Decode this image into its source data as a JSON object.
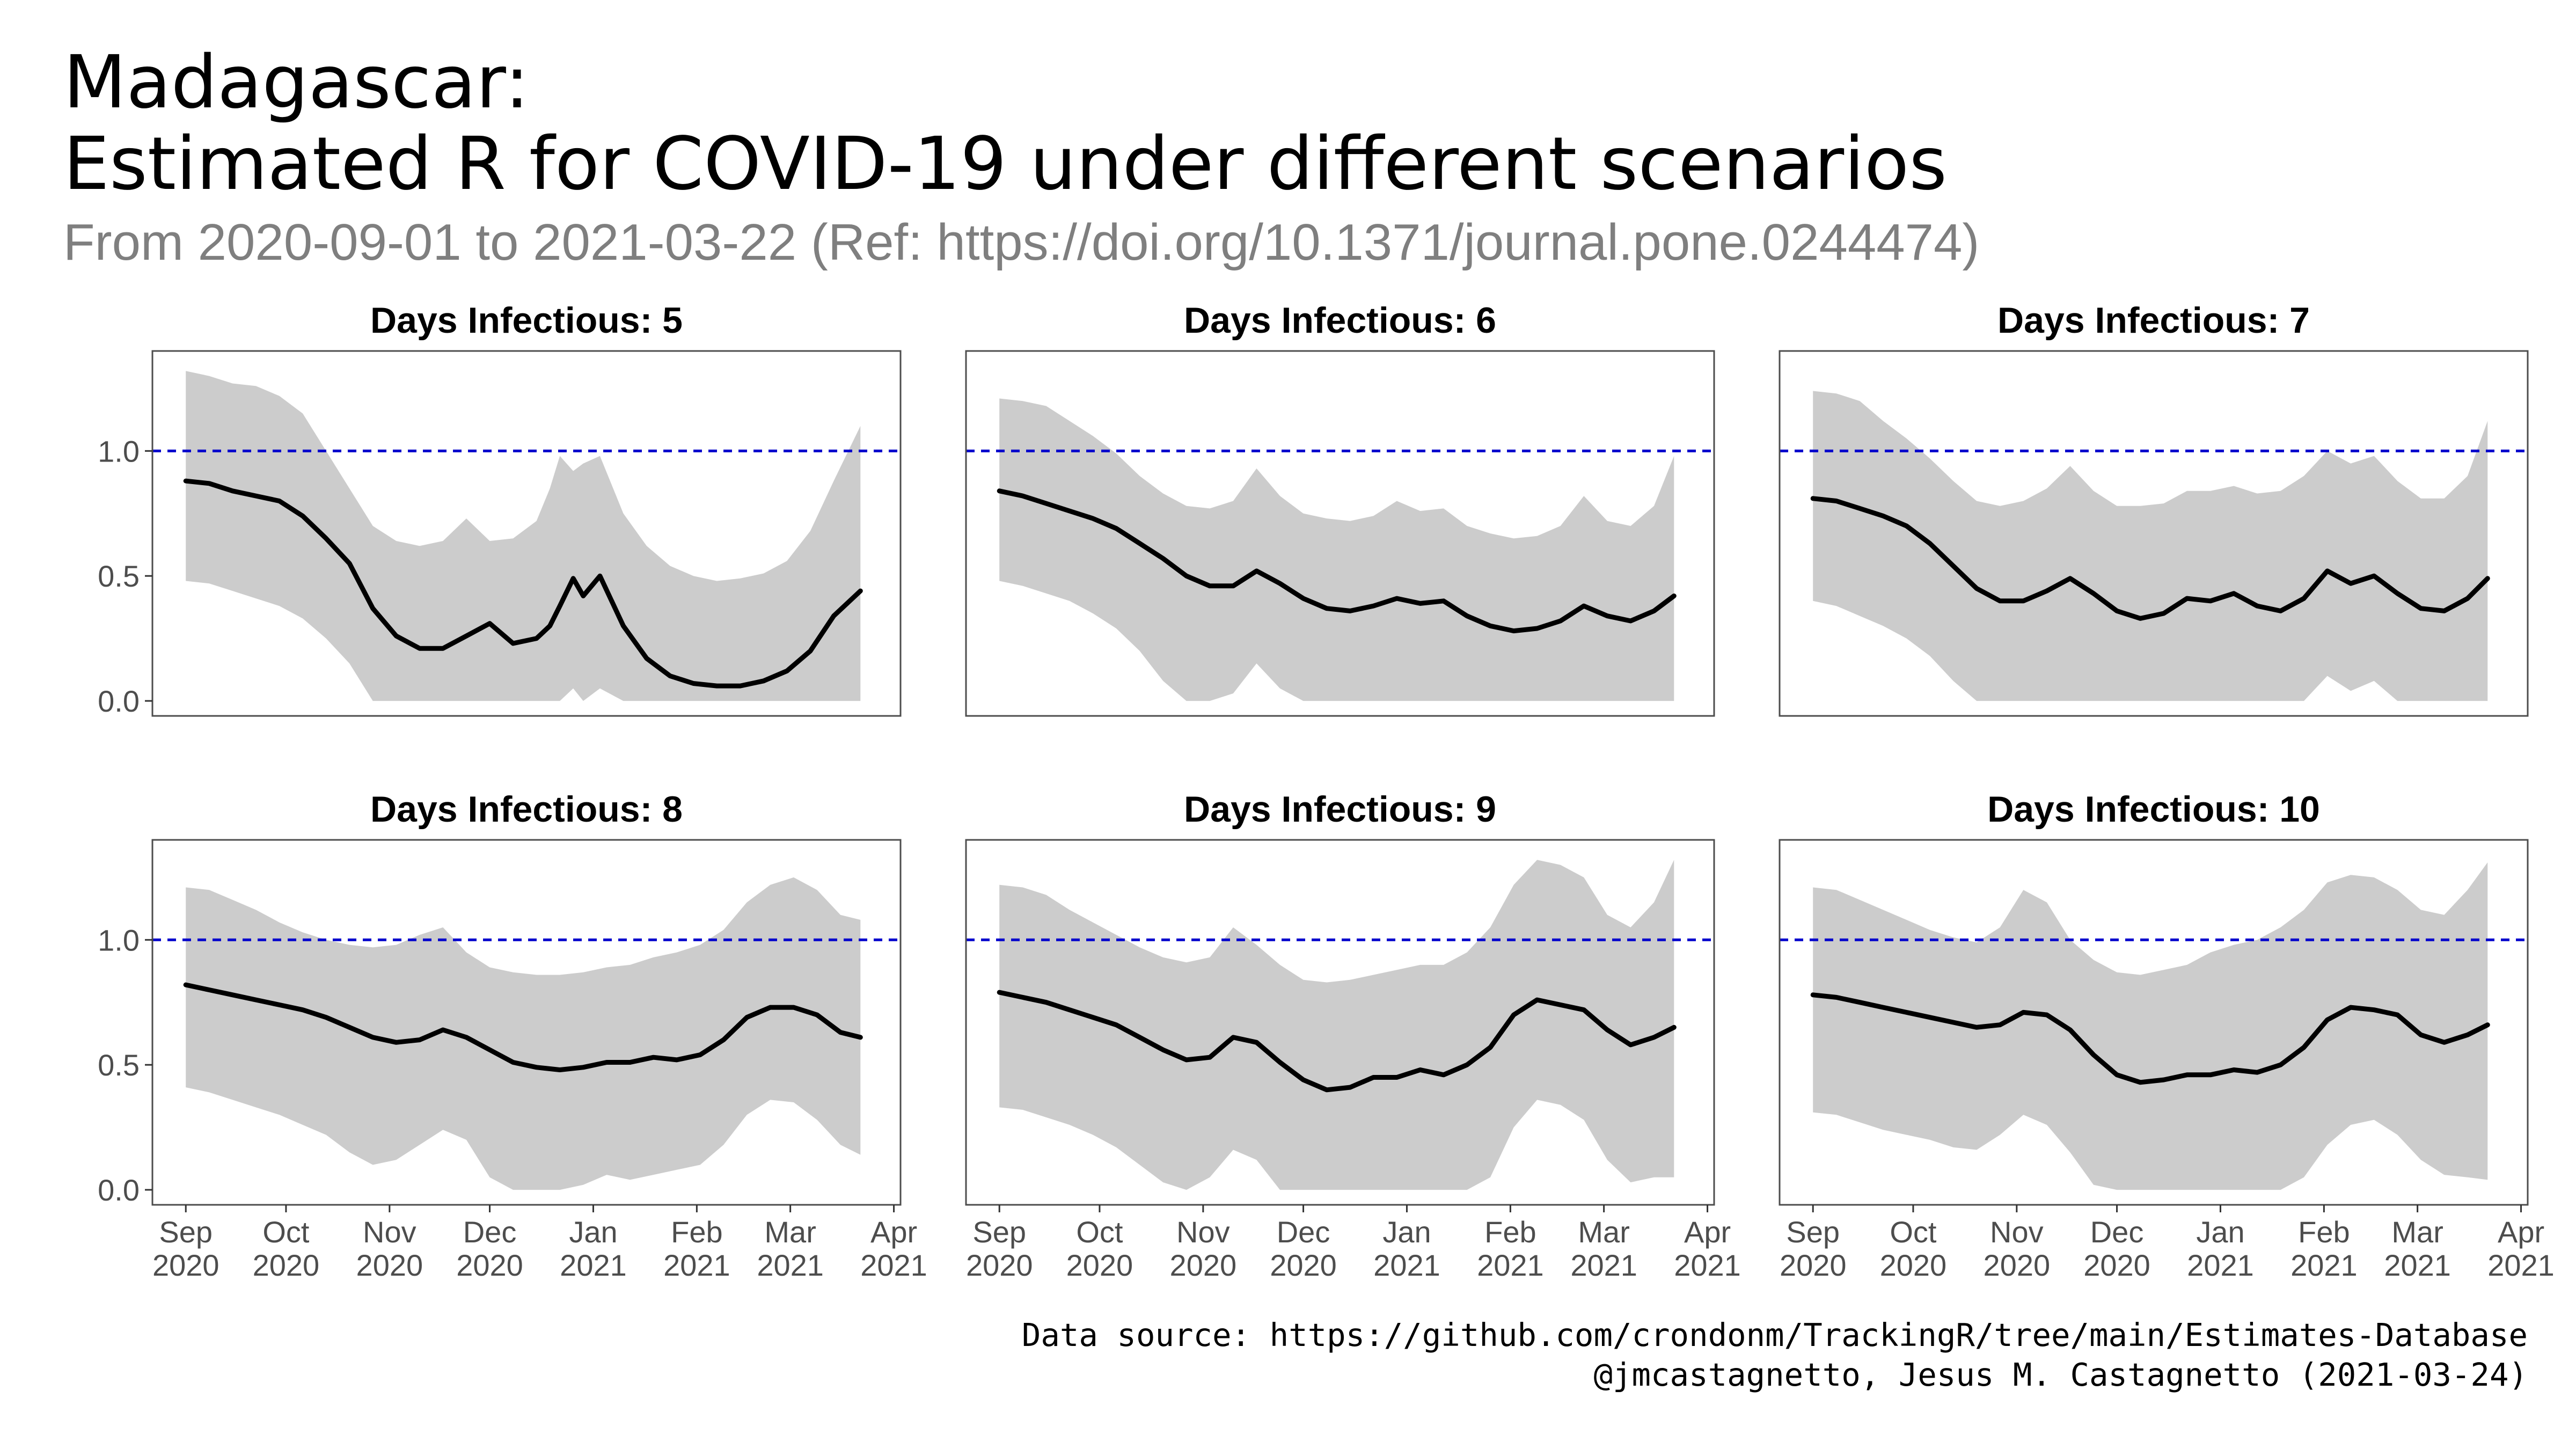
{
  "title_line1": "Madagascar:",
  "title_line2": "Estimated R for COVID-19 under different scenarios",
  "subtitle": "From 2020-09-01 to 2021-03-22 (Ref: https://doi.org/10.1371/journal.pone.0244474)",
  "caption_line1": "Data source: https://github.com/crondonm/TrackingR/tree/main/Estimates-Database",
  "caption_line2": "@jmcastagnetto, Jesus M. Castagnetto (2021-03-24)",
  "colors": {
    "ribbon": "#cccccc",
    "line": "#000000",
    "reference": "#0000cc",
    "panel_border": "#4d4d4d"
  },
  "chart_data": {
    "type": "area",
    "facet_by": "Days Infectious",
    "reference_line": {
      "y": 1.0,
      "style": "dashed"
    },
    "ylim": [
      -0.06,
      1.4
    ],
    "y_ticks": [
      0.0,
      0.5,
      1.0
    ],
    "y_tick_labels": [
      "0.0",
      "0.5",
      "1.0"
    ],
    "x_range": [
      "2020-08-22",
      "2021-04-03"
    ],
    "x_ticks": [
      "2020-09-01",
      "2020-10-01",
      "2020-11-01",
      "2020-12-01",
      "2021-01-01",
      "2021-02-01",
      "2021-03-01",
      "2021-04-01"
    ],
    "x_tick_labels": [
      [
        "Sep",
        "2020"
      ],
      [
        "Oct",
        "2020"
      ],
      [
        "Nov",
        "2020"
      ],
      [
        "Dec",
        "2020"
      ],
      [
        "Jan",
        "2021"
      ],
      [
        "Feb",
        "2021"
      ],
      [
        "Mar",
        "2021"
      ],
      [
        "Apr",
        "2021"
      ]
    ],
    "legend": "none",
    "grid": false,
    "panels": [
      {
        "title": "Days Infectious: 5",
        "dates": [
          "2020-09-01",
          "2020-09-08",
          "2020-09-15",
          "2020-09-22",
          "2020-09-29",
          "2020-10-06",
          "2020-10-13",
          "2020-10-20",
          "2020-10-27",
          "2020-11-03",
          "2020-11-10",
          "2020-11-17",
          "2020-11-24",
          "2020-12-01",
          "2020-12-08",
          "2020-12-15",
          "2020-12-19",
          "2020-12-22",
          "2020-12-26",
          "2020-12-29",
          "2021-01-03",
          "2021-01-10",
          "2021-01-17",
          "2021-01-24",
          "2021-01-31",
          "2021-02-07",
          "2021-02-14",
          "2021-02-21",
          "2021-02-28",
          "2021-03-07",
          "2021-03-14",
          "2021-03-22"
        ],
        "mean": [
          0.88,
          0.87,
          0.84,
          0.82,
          0.8,
          0.74,
          0.65,
          0.55,
          0.37,
          0.26,
          0.21,
          0.21,
          0.26,
          0.31,
          0.23,
          0.25,
          0.3,
          0.38,
          0.49,
          0.42,
          0.5,
          0.3,
          0.17,
          0.1,
          0.07,
          0.06,
          0.06,
          0.08,
          0.12,
          0.2,
          0.34,
          0.44
        ],
        "upper": [
          1.32,
          1.3,
          1.27,
          1.26,
          1.22,
          1.15,
          1.0,
          0.85,
          0.7,
          0.64,
          0.62,
          0.64,
          0.73,
          0.64,
          0.65,
          0.72,
          0.85,
          0.98,
          0.92,
          0.95,
          0.98,
          0.75,
          0.62,
          0.54,
          0.5,
          0.48,
          0.49,
          0.51,
          0.56,
          0.68,
          0.88,
          1.1
        ],
        "lower": [
          0.48,
          0.47,
          0.44,
          0.41,
          0.38,
          0.33,
          0.25,
          0.15,
          0.0,
          0.0,
          0.0,
          0.0,
          0.0,
          0.0,
          0.0,
          0.0,
          0.0,
          0.0,
          0.05,
          0.0,
          0.05,
          0.0,
          0.0,
          0.0,
          0.0,
          0.0,
          0.0,
          0.0,
          0.0,
          0.0,
          0.0,
          0.0
        ]
      },
      {
        "title": "Days Infectious: 6",
        "dates": [
          "2020-09-01",
          "2020-09-08",
          "2020-09-15",
          "2020-09-22",
          "2020-09-29",
          "2020-10-06",
          "2020-10-13",
          "2020-10-20",
          "2020-10-27",
          "2020-11-03",
          "2020-11-10",
          "2020-11-17",
          "2020-11-24",
          "2020-12-01",
          "2020-12-08",
          "2020-12-15",
          "2020-12-22",
          "2020-12-29",
          "2021-01-05",
          "2021-01-12",
          "2021-01-19",
          "2021-01-26",
          "2021-02-02",
          "2021-02-09",
          "2021-02-16",
          "2021-02-23",
          "2021-03-02",
          "2021-03-09",
          "2021-03-16",
          "2021-03-22"
        ],
        "mean": [
          0.84,
          0.82,
          0.79,
          0.76,
          0.73,
          0.69,
          0.63,
          0.57,
          0.5,
          0.46,
          0.46,
          0.52,
          0.47,
          0.41,
          0.37,
          0.36,
          0.38,
          0.41,
          0.39,
          0.4,
          0.34,
          0.3,
          0.28,
          0.29,
          0.32,
          0.38,
          0.34,
          0.32,
          0.36,
          0.42
        ],
        "upper": [
          1.21,
          1.2,
          1.18,
          1.12,
          1.06,
          0.99,
          0.9,
          0.83,
          0.78,
          0.77,
          0.8,
          0.93,
          0.82,
          0.75,
          0.73,
          0.72,
          0.74,
          0.8,
          0.76,
          0.77,
          0.7,
          0.67,
          0.65,
          0.66,
          0.7,
          0.82,
          0.72,
          0.7,
          0.78,
          0.98
        ],
        "lower": [
          0.48,
          0.46,
          0.43,
          0.4,
          0.35,
          0.29,
          0.2,
          0.08,
          0.0,
          0.0,
          0.03,
          0.15,
          0.05,
          0.0,
          0.0,
          0.0,
          0.0,
          0.0,
          0.0,
          0.0,
          0.0,
          0.0,
          0.0,
          0.0,
          0.0,
          0.0,
          0.0,
          0.0,
          0.0,
          0.0
        ]
      },
      {
        "title": "Days Infectious: 7",
        "dates": [
          "2020-09-01",
          "2020-09-08",
          "2020-09-15",
          "2020-09-22",
          "2020-09-29",
          "2020-10-06",
          "2020-10-13",
          "2020-10-20",
          "2020-10-27",
          "2020-11-03",
          "2020-11-10",
          "2020-11-17",
          "2020-11-24",
          "2020-12-01",
          "2020-12-08",
          "2020-12-15",
          "2020-12-22",
          "2020-12-29",
          "2021-01-05",
          "2021-01-12",
          "2021-01-19",
          "2021-01-26",
          "2021-02-02",
          "2021-02-09",
          "2021-02-16",
          "2021-02-23",
          "2021-03-02",
          "2021-03-09",
          "2021-03-16",
          "2021-03-22"
        ],
        "mean": [
          0.81,
          0.8,
          0.77,
          0.74,
          0.7,
          0.63,
          0.54,
          0.45,
          0.4,
          0.4,
          0.44,
          0.49,
          0.43,
          0.36,
          0.33,
          0.35,
          0.41,
          0.4,
          0.43,
          0.38,
          0.36,
          0.41,
          0.52,
          0.47,
          0.5,
          0.43,
          0.37,
          0.36,
          0.41,
          0.49
        ],
        "upper": [
          1.24,
          1.23,
          1.2,
          1.12,
          1.05,
          0.97,
          0.88,
          0.8,
          0.78,
          0.8,
          0.85,
          0.94,
          0.84,
          0.78,
          0.78,
          0.79,
          0.84,
          0.84,
          0.86,
          0.83,
          0.84,
          0.9,
          1.0,
          0.95,
          0.98,
          0.88,
          0.81,
          0.81,
          0.9,
          1.12
        ],
        "lower": [
          0.4,
          0.38,
          0.34,
          0.3,
          0.25,
          0.18,
          0.08,
          0.0,
          0.0,
          0.0,
          0.0,
          0.0,
          0.0,
          0.0,
          0.0,
          0.0,
          0.0,
          0.0,
          0.0,
          0.0,
          0.0,
          0.0,
          0.1,
          0.04,
          0.08,
          0.0,
          0.0,
          0.0,
          0.0,
          0.0
        ]
      },
      {
        "title": "Days Infectious: 8",
        "dates": [
          "2020-09-01",
          "2020-09-08",
          "2020-09-15",
          "2020-09-22",
          "2020-09-29",
          "2020-10-06",
          "2020-10-13",
          "2020-10-20",
          "2020-10-27",
          "2020-11-03",
          "2020-11-10",
          "2020-11-17",
          "2020-11-24",
          "2020-12-01",
          "2020-12-08",
          "2020-12-15",
          "2020-12-22",
          "2020-12-29",
          "2021-01-05",
          "2021-01-12",
          "2021-01-19",
          "2021-01-26",
          "2021-02-02",
          "2021-02-09",
          "2021-02-16",
          "2021-02-23",
          "2021-03-02",
          "2021-03-09",
          "2021-03-16",
          "2021-03-22"
        ],
        "mean": [
          0.82,
          0.8,
          0.78,
          0.76,
          0.74,
          0.72,
          0.69,
          0.65,
          0.61,
          0.59,
          0.6,
          0.64,
          0.61,
          0.56,
          0.51,
          0.49,
          0.48,
          0.49,
          0.51,
          0.51,
          0.53,
          0.52,
          0.54,
          0.6,
          0.69,
          0.73,
          0.73,
          0.7,
          0.63,
          0.61
        ],
        "upper": [
          1.21,
          1.2,
          1.16,
          1.12,
          1.07,
          1.03,
          1.0,
          0.98,
          0.97,
          0.98,
          1.02,
          1.05,
          0.95,
          0.89,
          0.87,
          0.86,
          0.86,
          0.87,
          0.89,
          0.9,
          0.93,
          0.95,
          0.98,
          1.04,
          1.15,
          1.22,
          1.25,
          1.2,
          1.1,
          1.08
        ],
        "lower": [
          0.41,
          0.39,
          0.36,
          0.33,
          0.3,
          0.26,
          0.22,
          0.15,
          0.1,
          0.12,
          0.18,
          0.24,
          0.2,
          0.05,
          0.0,
          0.0,
          0.0,
          0.02,
          0.06,
          0.04,
          0.06,
          0.08,
          0.1,
          0.18,
          0.3,
          0.36,
          0.35,
          0.28,
          0.18,
          0.14
        ]
      },
      {
        "title": "Days Infectious: 9",
        "dates": [
          "2020-09-01",
          "2020-09-08",
          "2020-09-15",
          "2020-09-22",
          "2020-09-29",
          "2020-10-06",
          "2020-10-13",
          "2020-10-20",
          "2020-10-27",
          "2020-11-03",
          "2020-11-10",
          "2020-11-17",
          "2020-11-24",
          "2020-12-01",
          "2020-12-08",
          "2020-12-15",
          "2020-12-22",
          "2020-12-29",
          "2021-01-05",
          "2021-01-12",
          "2021-01-19",
          "2021-01-26",
          "2021-02-02",
          "2021-02-09",
          "2021-02-16",
          "2021-02-23",
          "2021-03-02",
          "2021-03-09",
          "2021-03-16",
          "2021-03-22"
        ],
        "mean": [
          0.79,
          0.77,
          0.75,
          0.72,
          0.69,
          0.66,
          0.61,
          0.56,
          0.52,
          0.53,
          0.61,
          0.59,
          0.51,
          0.44,
          0.4,
          0.41,
          0.45,
          0.45,
          0.48,
          0.46,
          0.5,
          0.57,
          0.7,
          0.76,
          0.74,
          0.72,
          0.64,
          0.58,
          0.61,
          0.65
        ],
        "upper": [
          1.22,
          1.21,
          1.18,
          1.12,
          1.07,
          1.02,
          0.97,
          0.93,
          0.91,
          0.93,
          1.05,
          0.98,
          0.9,
          0.84,
          0.83,
          0.84,
          0.86,
          0.88,
          0.9,
          0.9,
          0.95,
          1.05,
          1.22,
          1.32,
          1.3,
          1.25,
          1.1,
          1.05,
          1.15,
          1.32
        ],
        "lower": [
          0.33,
          0.32,
          0.29,
          0.26,
          0.22,
          0.17,
          0.1,
          0.03,
          0.0,
          0.05,
          0.16,
          0.12,
          0.0,
          0.0,
          0.0,
          0.0,
          0.0,
          0.0,
          0.0,
          0.0,
          0.0,
          0.05,
          0.25,
          0.36,
          0.34,
          0.28,
          0.12,
          0.03,
          0.05,
          0.05
        ]
      },
      {
        "title": "Days Infectious: 10",
        "dates": [
          "2020-09-01",
          "2020-09-08",
          "2020-09-15",
          "2020-09-22",
          "2020-09-29",
          "2020-10-06",
          "2020-10-13",
          "2020-10-20",
          "2020-10-27",
          "2020-11-03",
          "2020-11-10",
          "2020-11-17",
          "2020-11-24",
          "2020-12-01",
          "2020-12-08",
          "2020-12-15",
          "2020-12-22",
          "2020-12-29",
          "2021-01-05",
          "2021-01-12",
          "2021-01-19",
          "2021-01-26",
          "2021-02-02",
          "2021-02-09",
          "2021-02-16",
          "2021-02-23",
          "2021-03-02",
          "2021-03-09",
          "2021-03-16",
          "2021-03-22"
        ],
        "mean": [
          0.78,
          0.77,
          0.75,
          0.73,
          0.71,
          0.69,
          0.67,
          0.65,
          0.66,
          0.71,
          0.7,
          0.64,
          0.54,
          0.46,
          0.43,
          0.44,
          0.46,
          0.46,
          0.48,
          0.47,
          0.5,
          0.57,
          0.68,
          0.73,
          0.72,
          0.7,
          0.62,
          0.59,
          0.62,
          0.66
        ],
        "upper": [
          1.21,
          1.2,
          1.16,
          1.12,
          1.08,
          1.04,
          1.01,
          0.99,
          1.05,
          1.2,
          1.15,
          1.0,
          0.92,
          0.87,
          0.86,
          0.88,
          0.9,
          0.95,
          0.98,
          1.0,
          1.05,
          1.12,
          1.23,
          1.26,
          1.25,
          1.2,
          1.12,
          1.1,
          1.2,
          1.31
        ],
        "lower": [
          0.31,
          0.3,
          0.27,
          0.24,
          0.22,
          0.2,
          0.17,
          0.16,
          0.22,
          0.3,
          0.26,
          0.15,
          0.02,
          0.0,
          0.0,
          0.0,
          0.0,
          0.0,
          0.0,
          0.0,
          0.0,
          0.05,
          0.18,
          0.26,
          0.28,
          0.22,
          0.12,
          0.06,
          0.05,
          0.04
        ]
      }
    ]
  }
}
